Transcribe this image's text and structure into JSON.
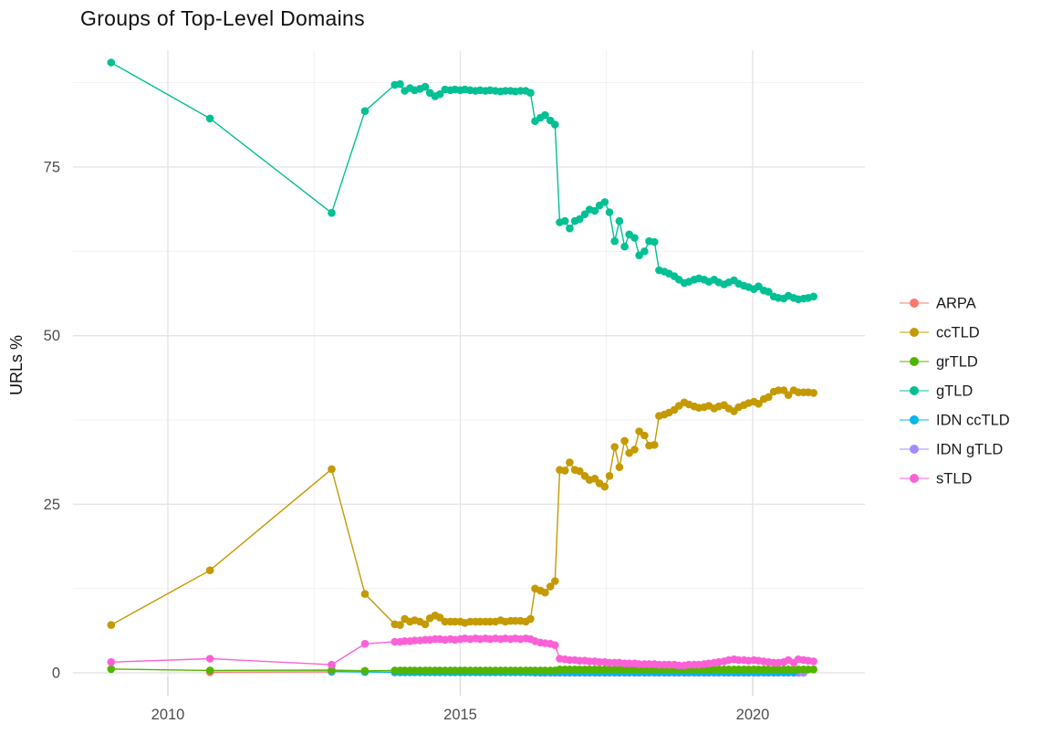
{
  "title": "Groups of Top-Level Domains",
  "axes": {
    "y_label": "URLs %",
    "x_major_ticks": [
      2010,
      2015,
      2020
    ],
    "x_tick_labels": [
      "2010",
      "2015",
      "2020"
    ],
    "x_minor_ticks": [
      2012.5,
      2017.5
    ],
    "y_major_ticks": [
      0,
      25,
      50,
      75
    ],
    "y_tick_labels": [
      "0",
      "25",
      "50",
      "75"
    ],
    "y_minor_ticks": [
      12.5,
      37.5,
      62.5,
      87.5
    ]
  },
  "legend": {
    "items": [
      {
        "label": "ARPA",
        "color": "#F8766D"
      },
      {
        "label": "ccTLD",
        "color": "#C49A00"
      },
      {
        "label": "grTLD",
        "color": "#53B400"
      },
      {
        "label": "gTLD",
        "color": "#00C094"
      },
      {
        "label": "IDN ccTLD",
        "color": "#00B6EB"
      },
      {
        "label": "IDN gTLD",
        "color": "#A58AFF"
      },
      {
        "label": "sTLD",
        "color": "#FB61D7"
      }
    ]
  },
  "style": {
    "grid_major_color": "#e5e5e5",
    "grid_minor_color": "#f1f1f1",
    "tick_mark_color": "#d9d9d9",
    "axis_text_color": "#4d4d4d",
    "background": "#ffffff"
  },
  "chart_data": {
    "type": "line",
    "title": "Groups of Top-Level Domains",
    "xlabel": "",
    "ylabel": "URLs %",
    "xlim": [
      2008.4,
      2021.9
    ],
    "ylim": [
      -0.7,
      92.3
    ],
    "grid": "major+minor",
    "legend_position": "right",
    "x": [
      2009.03,
      2010.72,
      2012.8,
      2013.37,
      2013.88,
      2013.97,
      2014.05,
      2014.14,
      2014.22,
      2014.31,
      2014.4,
      2014.48,
      2014.57,
      2014.65,
      2014.74,
      2014.83,
      2014.91,
      2015.0,
      2015.08,
      2015.17,
      2015.26,
      2015.34,
      2015.43,
      2015.51,
      2015.6,
      2015.69,
      2015.77,
      2015.86,
      2015.94,
      2016.03,
      2016.12,
      2016.2,
      2016.28,
      2016.37,
      2016.45,
      2016.54,
      2016.62,
      2016.7,
      2016.79,
      2016.87,
      2016.96,
      2017.04,
      2017.13,
      2017.21,
      2017.3,
      2017.38,
      2017.47,
      2017.55,
      2017.64,
      2017.72,
      2017.81,
      2017.89,
      2017.98,
      2018.06,
      2018.15,
      2018.23,
      2018.32,
      2018.4,
      2018.49,
      2018.57,
      2018.66,
      2018.74,
      2018.83,
      2018.91,
      2019.0,
      2019.08,
      2019.17,
      2019.25,
      2019.34,
      2019.42,
      2019.51,
      2019.59,
      2019.68,
      2019.76,
      2019.85,
      2019.93,
      2020.02,
      2020.1,
      2020.19,
      2020.27,
      2020.36,
      2020.44,
      2020.53,
      2020.61,
      2020.7,
      2020.78,
      2020.87,
      2020.95,
      2021.04
    ],
    "series": [
      {
        "name": "ARPA",
        "color": "#F8766D",
        "points": [
          [
            2010.72,
            0.1
          ],
          [
            2012.8,
            0.15
          ]
        ]
      },
      {
        "name": "IDN gTLD",
        "color": "#A58AFF",
        "x_start_index": 4,
        "y": [
          0.08,
          0.08,
          0.08,
          0.08,
          0.08,
          0.08,
          0.08,
          0.08,
          0.08,
          0.08,
          0.08,
          0.08,
          0.08,
          0.08,
          0.08,
          0.08,
          0.08,
          0.08,
          0.08,
          0.08,
          0.08,
          0.08,
          0.08,
          0.08,
          0.08,
          0.08,
          0.08,
          0.08,
          0.02,
          0.02,
          0.02,
          0.02,
          0.02,
          0.0,
          0.0,
          0.0,
          0.0,
          0.0,
          0.0,
          0.0,
          0.0,
          0.0,
          0.0,
          0.0,
          0.0,
          0.0,
          0.0,
          0.0,
          0.0,
          0.0,
          0.0,
          0.0,
          0.0,
          0.0,
          0.0,
          0.0,
          0.0,
          0.0,
          0.0,
          0.0,
          0.0,
          0.0,
          0.0,
          0.0,
          0.0,
          0.0,
          0.0,
          0.0,
          0.0,
          0.0,
          0.0,
          0.0,
          0.0,
          0.0,
          0.0,
          0.0,
          0.0,
          0.0,
          0.0,
          0.0,
          0.0,
          0.0,
          0.0
        ]
      },
      {
        "name": "IDN ccTLD",
        "color": "#00B6EB",
        "x_start_index": 2,
        "y": [
          0.2,
          0.12,
          0.1,
          0.1,
          0.1,
          0.1,
          0.1,
          0.1,
          0.1,
          0.1,
          0.1,
          0.1,
          0.1,
          0.1,
          0.1,
          0.1,
          0.1,
          0.1,
          0.1,
          0.1,
          0.1,
          0.1,
          0.1,
          0.1,
          0.1,
          0.1,
          0.1,
          0.1,
          0.1,
          0.1,
          0.1,
          0.1,
          0.1,
          0.1,
          0.1,
          0.1,
          0.1,
          0.1,
          0.1,
          0.1,
          0.1,
          0.1,
          0.1,
          0.1,
          0.1,
          0.1,
          0.1,
          0.1,
          0.1,
          0.1,
          0.1,
          0.1,
          0.1,
          0.1,
          0.1,
          0.1,
          0.1,
          0.1,
          0.1,
          0.1,
          0.1,
          0.1,
          0.1,
          0.1,
          0.1,
          0.1,
          0.1,
          0.1,
          0.1,
          0.1,
          0.1,
          0.1,
          0.1,
          0.1,
          0.1,
          0.1,
          0.1,
          0.1,
          0.1,
          0.1,
          0.1,
          0.1,
          0.1
        ]
      },
      {
        "name": "grTLD",
        "color": "#53B400",
        "y": [
          0.55,
          0.35,
          0.4,
          0.3,
          0.35,
          0.35,
          0.35,
          0.35,
          0.35,
          0.35,
          0.35,
          0.35,
          0.35,
          0.35,
          0.35,
          0.35,
          0.35,
          0.35,
          0.35,
          0.35,
          0.35,
          0.35,
          0.35,
          0.35,
          0.35,
          0.35,
          0.35,
          0.35,
          0.35,
          0.35,
          0.35,
          0.35,
          0.35,
          0.35,
          0.35,
          0.35,
          0.35,
          0.5,
          0.5,
          0.5,
          0.5,
          0.5,
          0.5,
          0.5,
          0.5,
          0.5,
          0.5,
          0.5,
          0.5,
          0.5,
          0.5,
          0.5,
          0.5,
          0.5,
          0.5,
          0.5,
          0.5,
          0.5,
          0.5,
          0.5,
          0.5,
          0.5,
          0.5,
          0.5,
          0.5,
          0.5,
          0.5,
          0.5,
          0.5,
          0.5,
          0.5,
          0.5,
          0.5,
          0.5,
          0.5,
          0.5,
          0.5,
          0.5,
          0.5,
          0.5,
          0.5,
          0.5,
          0.5,
          0.5,
          0.5,
          0.5,
          0.5,
          0.5,
          0.5
        ]
      },
      {
        "name": "ccTLD",
        "color": "#C49A00",
        "y": [
          7.1,
          15.2,
          30.2,
          11.7,
          7.2,
          7.1,
          8.0,
          7.6,
          7.8,
          7.6,
          7.2,
          8.1,
          8.5,
          8.2,
          7.6,
          7.6,
          7.6,
          7.6,
          7.4,
          7.6,
          7.6,
          7.6,
          7.6,
          7.6,
          7.6,
          7.8,
          7.6,
          7.7,
          7.7,
          7.7,
          7.6,
          8.0,
          12.5,
          12.2,
          11.9,
          12.8,
          13.6,
          30.1,
          30.0,
          31.2,
          30.1,
          29.9,
          29.2,
          28.6,
          28.8,
          28.1,
          27.6,
          29.2,
          33.5,
          30.5,
          34.4,
          32.6,
          33.1,
          35.8,
          35.2,
          33.7,
          33.8,
          38.1,
          38.3,
          38.6,
          39.0,
          39.6,
          40.1,
          39.8,
          39.5,
          39.3,
          39.4,
          39.6,
          39.2,
          39.5,
          39.7,
          39.2,
          38.8,
          39.4,
          39.7,
          40.0,
          40.2,
          39.9,
          40.6,
          40.9,
          41.7,
          41.9,
          41.9,
          41.2,
          41.9,
          41.6,
          41.6,
          41.6,
          41.5
        ]
      },
      {
        "name": "gTLD",
        "color": "#00C094",
        "y": [
          90.5,
          82.2,
          68.2,
          83.3,
          87.2,
          87.3,
          86.3,
          86.7,
          86.4,
          86.6,
          86.9,
          86.0,
          85.5,
          85.8,
          86.5,
          86.4,
          86.5,
          86.4,
          86.5,
          86.4,
          86.3,
          86.4,
          86.3,
          86.4,
          86.3,
          86.2,
          86.3,
          86.3,
          86.2,
          86.3,
          86.3,
          86.0,
          81.8,
          82.3,
          82.7,
          81.9,
          81.3,
          66.8,
          67.0,
          65.9,
          67.0,
          67.3,
          68.0,
          68.7,
          68.5,
          69.3,
          69.8,
          68.3,
          64.0,
          67.0,
          63.2,
          65.0,
          64.5,
          61.9,
          62.5,
          64.0,
          63.9,
          59.7,
          59.5,
          59.2,
          58.8,
          58.3,
          57.8,
          58.0,
          58.3,
          58.5,
          58.3,
          58.0,
          58.3,
          57.9,
          57.6,
          57.9,
          58.2,
          57.7,
          57.4,
          57.2,
          56.9,
          57.3,
          56.7,
          56.5,
          55.8,
          55.6,
          55.5,
          55.9,
          55.6,
          55.4,
          55.5,
          55.6,
          55.8
        ]
      },
      {
        "name": "sTLD",
        "color": "#FB61D7",
        "y": [
          1.6,
          2.1,
          1.2,
          4.3,
          4.6,
          4.6,
          4.7,
          4.7,
          4.8,
          4.8,
          4.9,
          4.9,
          5.0,
          5.0,
          4.9,
          5.0,
          4.9,
          5.0,
          5.1,
          5.0,
          5.1,
          5.0,
          5.1,
          5.0,
          5.1,
          5.0,
          5.1,
          5.0,
          5.1,
          5.0,
          5.1,
          5.0,
          4.7,
          4.5,
          4.4,
          4.3,
          4.1,
          2.1,
          2.0,
          1.9,
          1.9,
          1.8,
          1.8,
          1.7,
          1.7,
          1.6,
          1.6,
          1.5,
          1.5,
          1.5,
          1.4,
          1.4,
          1.4,
          1.3,
          1.3,
          1.3,
          1.3,
          1.2,
          1.2,
          1.2,
          1.2,
          1.1,
          1.1,
          1.2,
          1.2,
          1.2,
          1.3,
          1.4,
          1.5,
          1.6,
          1.7,
          1.9,
          2.0,
          1.9,
          1.9,
          1.8,
          1.9,
          1.8,
          1.7,
          1.6,
          1.5,
          1.5,
          1.6,
          1.9,
          1.5,
          2.0,
          1.9,
          1.8,
          1.7
        ]
      }
    ]
  }
}
